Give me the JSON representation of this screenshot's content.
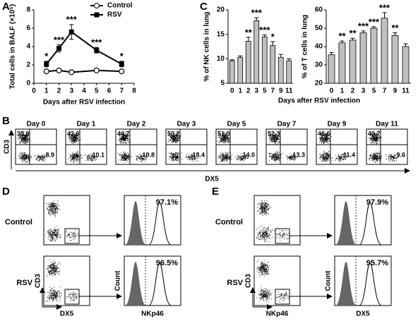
{
  "panel_labels": [
    "A",
    "B",
    "C",
    "D",
    "E"
  ],
  "chart_data": [
    {
      "type": "line",
      "x_label": "Days after RSV infection",
      "y_label": "Total cells in BALF (×10⁵)",
      "x": [
        1,
        2,
        3,
        5,
        7
      ],
      "xlim": [
        0,
        8
      ],
      "xticks": [
        0,
        1,
        2,
        3,
        4,
        5,
        6,
        7,
        8
      ],
      "ylim": [
        0,
        8
      ],
      "yticks": [
        0,
        2,
        4,
        6,
        8
      ],
      "legend": "top-right",
      "series": [
        {
          "name": "Control",
          "color": "#000000",
          "marker": "circle",
          "values": [
            1.3,
            1.4,
            1.2,
            1.4,
            1.3
          ],
          "errors": [
            0.1,
            0.1,
            0.1,
            0.1,
            0.1
          ]
        },
        {
          "name": "RSV",
          "color": "#000000",
          "marker": "square",
          "values": [
            2.1,
            3.8,
            5.6,
            3.6,
            2.1
          ],
          "errors": [
            0.3,
            0.4,
            0.8,
            0.3,
            0.3
          ],
          "annotations": [
            "*",
            "***",
            "***",
            "***",
            "*"
          ]
        }
      ]
    },
    {
      "type": "bar",
      "y_label": "% of NK cells in lung",
      "categories": [
        "0",
        "1",
        "2",
        "3",
        "5",
        "7",
        "9",
        "11"
      ],
      "values": [
        9.6,
        10.3,
        13.6,
        17.8,
        14.5,
        12.7,
        10.3,
        9.6
      ],
      "errors": [
        0.2,
        0.3,
        0.8,
        0.6,
        0.4,
        0.8,
        0.6,
        0.4
      ],
      "annotations": [
        null,
        null,
        "**",
        "***",
        "***",
        "*",
        null,
        null
      ],
      "ylim": [
        5,
        20
      ],
      "yticks": [
        5,
        10,
        15,
        20
      ],
      "color": "#c0c0c0"
    },
    {
      "type": "bar",
      "y_label": "% of T cells in lung",
      "categories": [
        "0",
        "1",
        "2",
        "3",
        "5",
        "7",
        "9",
        "11"
      ],
      "values": [
        35.5,
        42,
        43.5,
        47.5,
        50,
        55.5,
        46,
        40
      ],
      "errors": [
        1.2,
        1,
        1,
        1,
        0.8,
        3,
        1.5,
        1.5
      ],
      "annotations": [
        null,
        "**",
        "**",
        "***",
        "***",
        "***",
        "**",
        null
      ],
      "ylim": [
        20,
        60
      ],
      "yticks": [
        20,
        30,
        40,
        50,
        60
      ],
      "color": "#c0c0c0"
    }
  ],
  "panel_c_x_label": "Days after RSV infection",
  "panel_b": {
    "y_axis": "CD3",
    "x_axis": "DX5",
    "plots": [
      {
        "day": "Day 0",
        "upper_left": "35.9",
        "lower_right": "8.9"
      },
      {
        "day": "Day 1",
        "upper_left": "42.6",
        "lower_right": "10.1"
      },
      {
        "day": "Day 2",
        "upper_left": "44.7",
        "lower_right": "10.8"
      },
      {
        "day": "Day 3",
        "upper_left": "50.2",
        "lower_right": "18.4"
      },
      {
        "day": "Day 5",
        "upper_left": "51.0",
        "lower_right": "14.0"
      },
      {
        "day": "Day 7",
        "upper_left": "52.3",
        "lower_right": "13.3"
      },
      {
        "day": "Day 9",
        "upper_left": "46.6",
        "lower_right": "11.4"
      },
      {
        "day": "Day 11",
        "upper_left": "40.7",
        "lower_right": "9.6"
      }
    ]
  },
  "panel_d": {
    "rows": [
      {
        "condition": "Control",
        "percent": "97.1%"
      },
      {
        "condition": "RSV",
        "percent": "96.5%"
      }
    ],
    "dot_y_axis": "CD3",
    "dot_x_axis": "DX5",
    "hist_y_axis": "Count",
    "hist_x_axis": "NKp46"
  },
  "panel_e": {
    "rows": [
      {
        "condition": "Control",
        "percent": "97.9%"
      },
      {
        "condition": "RSV",
        "percent": "95.7%"
      }
    ],
    "dot_y_axis": "CD3",
    "dot_x_axis": "NKp46",
    "hist_y_axis": "Count",
    "hist_x_axis": "DX5"
  }
}
